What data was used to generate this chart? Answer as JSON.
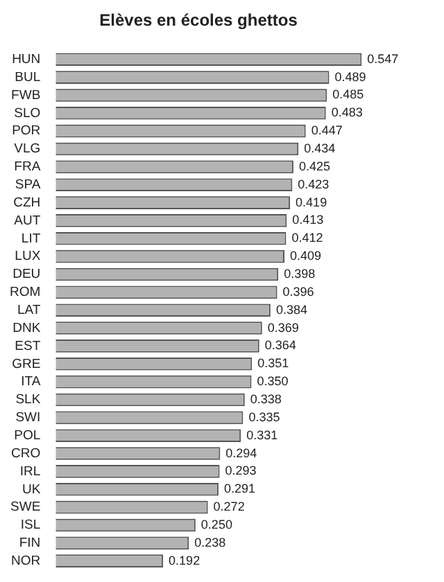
{
  "chart_data": {
    "type": "bar",
    "orientation": "horizontal",
    "title": "Elèves en écoles ghettos",
    "categories": [
      "HUN",
      "BUL",
      "FWB",
      "SLO",
      "POR",
      "VLG",
      "FRA",
      "SPA",
      "CZH",
      "AUT",
      "LIT",
      "LUX",
      "DEU",
      "ROM",
      "LAT",
      "DNK",
      "EST",
      "GRE",
      "ITA",
      "SLK",
      "SWI",
      "POL",
      "CRO",
      "IRL",
      "UK",
      "SWE",
      "ISL",
      "FIN",
      "NOR"
    ],
    "values": [
      0.547,
      0.489,
      0.485,
      0.483,
      0.447,
      0.434,
      0.425,
      0.423,
      0.419,
      0.413,
      0.412,
      0.409,
      0.398,
      0.396,
      0.384,
      0.369,
      0.364,
      0.351,
      0.35,
      0.338,
      0.335,
      0.331,
      0.294,
      0.293,
      0.291,
      0.272,
      0.25,
      0.238,
      0.192
    ],
    "value_labels": [
      "0.547",
      "0.489",
      "0.485",
      "0.483",
      "0.447",
      "0.434",
      "0.425",
      "0.423",
      "0.419",
      "0.413",
      "0.412",
      "0.409",
      "0.398",
      "0.396",
      "0.384",
      "0.369",
      "0.364",
      "0.351",
      "0.350",
      "0.338",
      "0.335",
      "0.331",
      "0.294",
      "0.293",
      "0.291",
      "0.272",
      "0.250",
      "0.238",
      "0.192"
    ],
    "color": "#b3b3b3",
    "grid": false,
    "legend": false
  }
}
